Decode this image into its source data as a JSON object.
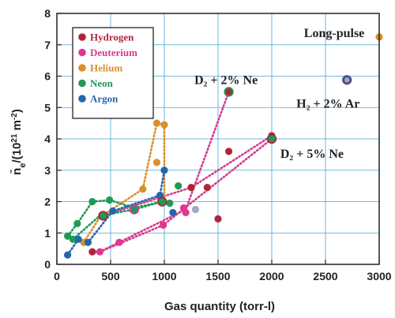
{
  "chart_data": {
    "type": "scatter",
    "xlabel": "Gas quantity (torr-l)",
    "ylabel": "n̄e/(10²¹ m⁻²)",
    "ylabel_parts": {
      "main": "n̄",
      "sub": "e",
      "mid": "/(10",
      "sup1": "21",
      "mid2": " m",
      "sup2": "-2",
      "tail": ")"
    },
    "xlim": [
      0,
      3000
    ],
    "ylim": [
      0,
      8
    ],
    "xticks": [
      0,
      500,
      1000,
      1500,
      2000,
      2500,
      3000
    ],
    "yticks": [
      0,
      1,
      2,
      3,
      4,
      5,
      6,
      7,
      8
    ],
    "grid": true,
    "legend_position": "top-left",
    "series": [
      {
        "name": "Hydrogen",
        "color": "#b0243a",
        "x": [
          330,
          1250,
          1400,
          1600,
          1500,
          2000
        ],
        "y": [
          0.4,
          2.45,
          2.45,
          3.6,
          1.45,
          4.1
        ]
      },
      {
        "name": "Deuterium",
        "color": "#e0368f",
        "x": [
          400,
          580,
          990,
          1200,
          1180,
          1600
        ],
        "y": [
          0.4,
          0.7,
          1.25,
          1.65,
          1.8,
          5.5
        ]
      },
      {
        "name": "Helium",
        "color": "#d9902a",
        "x": [
          250,
          800,
          930,
          1000,
          930,
          3000
        ],
        "y": [
          0.7,
          2.4,
          3.25,
          4.45,
          4.5,
          7.25
        ]
      },
      {
        "name": "Neon",
        "color": "#1f9a55",
        "x": [
          100,
          190,
          330,
          490,
          720,
          980,
          1130,
          1050,
          150
        ],
        "y": [
          0.9,
          1.3,
          2.0,
          2.05,
          1.8,
          2.0,
          2.5,
          1.95,
          0.8
        ]
      },
      {
        "name": "Argon",
        "color": "#2266b0",
        "x": [
          100,
          200,
          290,
          520,
          960,
          1000,
          1080
        ],
        "y": [
          0.3,
          0.8,
          0.7,
          1.7,
          2.2,
          3.0,
          1.65
        ]
      },
      {
        "name": "",
        "color": "#a0a8c8",
        "x": [
          1290
        ],
        "y": [
          1.75
        ]
      }
    ],
    "lines": [
      {
        "color": "#d63a8f",
        "points": [
          [
            330,
            0.4
          ],
          [
            400,
            0.4
          ],
          [
            1200,
            1.75
          ],
          [
            1600,
            5.5
          ]
        ]
      },
      {
        "color": "#d63a8f",
        "points": [
          [
            400,
            0.4
          ],
          [
            990,
            1.25
          ],
          [
            2000,
            4.0
          ]
        ]
      },
      {
        "color": "#d63a8f",
        "points": [
          [
            430,
            1.55
          ],
          [
            1250,
            2.45
          ],
          [
            2000,
            4.1
          ]
        ]
      },
      {
        "color": "#d9902a",
        "points": [
          [
            250,
            0.7
          ],
          [
            400,
            1.5
          ],
          [
            800,
            2.4
          ],
          [
            930,
            4.5
          ],
          [
            1000,
            4.45
          ],
          [
            1000,
            2.0
          ]
        ]
      },
      {
        "color": "#1f9a55",
        "points": [
          [
            100,
            0.9
          ],
          [
            190,
            1.3
          ],
          [
            330,
            2.0
          ],
          [
            490,
            2.05
          ],
          [
            720,
            1.8
          ],
          [
            980,
            2.0
          ]
        ]
      },
      {
        "color": "#1f9a55",
        "points": [
          [
            150,
            0.8
          ],
          [
            400,
            1.55
          ],
          [
            720,
            1.75
          ],
          [
            980,
            2.0
          ],
          [
            1050,
            1.95
          ]
        ]
      },
      {
        "color": "#2266b0",
        "points": [
          [
            100,
            0.3
          ],
          [
            200,
            0.8
          ],
          [
            290,
            0.7
          ],
          [
            520,
            1.7
          ],
          [
            960,
            2.2
          ],
          [
            1000,
            3.0
          ]
        ]
      }
    ],
    "big_markers": [
      {
        "x": 1600,
        "y": 5.5,
        "color": "#b0243a",
        "ring": "#1f9a55"
      },
      {
        "x": 2000,
        "y": 4.0,
        "color": "#1f9a55",
        "ring": "#b0243a"
      },
      {
        "x": 2700,
        "y": 5.88,
        "color": "#b0243a",
        "ring": "#2266b0",
        "inner": "#a0a8c8"
      },
      {
        "x": 980,
        "y": 2.0,
        "color": "#1f9a55",
        "ring": "#b0243a"
      },
      {
        "x": 430,
        "y": 1.55,
        "color": "#1f9a55",
        "ring": "#b0243a"
      },
      {
        "x": 720,
        "y": 1.75,
        "color": "#1f9a55",
        "ring": "#d63a8f"
      }
    ],
    "annotations": [
      {
        "text": "Long-pulse",
        "x": 2300,
        "y": 7.25
      },
      {
        "text": "D₂ + 2% Ne",
        "x": 1280,
        "y": 5.75
      },
      {
        "text": "H₂ + 2% Ar",
        "x": 2230,
        "y": 5.0
      },
      {
        "text": "D₂ + 5% Ne",
        "x": 2080,
        "y": 3.4
      }
    ]
  }
}
